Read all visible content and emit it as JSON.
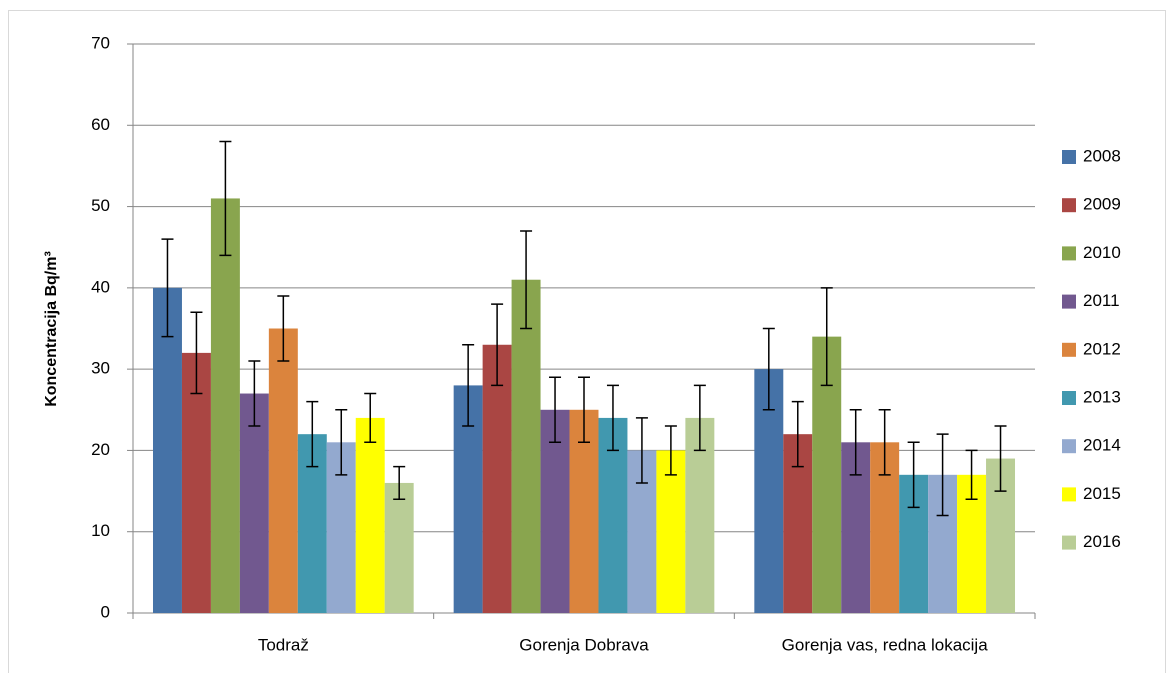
{
  "chart_data": {
    "type": "bar",
    "y_label": "Koncentracija Bq/m³",
    "categories": [
      "Todraž",
      "Gorenja Dobrava",
      "Gorenja vas, redna lokacija"
    ],
    "series": [
      {
        "name": "2008",
        "color": "#4572a7",
        "values": [
          40,
          28,
          30
        ],
        "errors": [
          6,
          5,
          5
        ]
      },
      {
        "name": "2009",
        "color": "#aa4643",
        "values": [
          32,
          33,
          22
        ],
        "errors": [
          5,
          5,
          4
        ]
      },
      {
        "name": "2010",
        "color": "#89a54e",
        "values": [
          51,
          41,
          34
        ],
        "errors": [
          7,
          6,
          6
        ]
      },
      {
        "name": "2011",
        "color": "#71588f",
        "values": [
          27,
          25,
          21
        ],
        "errors": [
          4,
          4,
          4
        ]
      },
      {
        "name": "2012",
        "color": "#db843d",
        "values": [
          35,
          25,
          21
        ],
        "errors": [
          4,
          4,
          4
        ]
      },
      {
        "name": "2013",
        "color": "#4198af",
        "values": [
          22,
          24,
          17
        ],
        "errors": [
          4,
          4,
          4
        ]
      },
      {
        "name": "2014",
        "color": "#93a9cf",
        "values": [
          21,
          20,
          17
        ],
        "errors": [
          4,
          4,
          5
        ]
      },
      {
        "name": "2015",
        "color": "#ffff00",
        "values": [
          24,
          20,
          17
        ],
        "errors": [
          3,
          3,
          3
        ]
      },
      {
        "name": "2016",
        "color": "#b9cd96",
        "values": [
          16,
          24,
          19
        ],
        "errors": [
          2,
          4,
          4
        ]
      }
    ],
    "ylim": [
      0,
      70
    ],
    "yticks": [
      0,
      10,
      20,
      30,
      40,
      50,
      60,
      70
    ],
    "grid": true,
    "legend": "right"
  }
}
